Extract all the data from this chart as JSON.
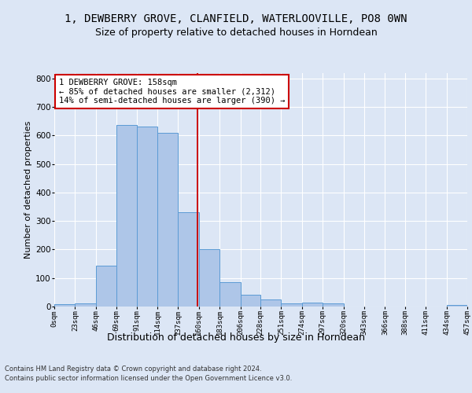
{
  "title_line1": "1, DEWBERRY GROVE, CLANFIELD, WATERLOOVILLE, PO8 0WN",
  "title_line2": "Size of property relative to detached houses in Horndean",
  "xlabel": "Distribution of detached houses by size in Horndean",
  "ylabel": "Number of detached properties",
  "footer1": "Contains HM Land Registry data © Crown copyright and database right 2024.",
  "footer2": "Contains public sector information licensed under the Open Government Licence v3.0.",
  "bar_edges": [
    0,
    23,
    46,
    69,
    91,
    114,
    137,
    160,
    183,
    206,
    228,
    251,
    274,
    297,
    320,
    343,
    366,
    388,
    411,
    434,
    457
  ],
  "bar_heights": [
    7,
    10,
    143,
    638,
    630,
    608,
    330,
    200,
    85,
    42,
    26,
    12,
    13,
    10,
    0,
    0,
    0,
    0,
    0,
    5
  ],
  "bar_color": "#aec6e8",
  "bar_edgecolor": "#5b9bd5",
  "vline_x": 158,
  "vline_color": "#cc0000",
  "annotation_line1": "1 DEWBERRY GROVE: 158sqm",
  "annotation_line2": "← 85% of detached houses are smaller (2,312)",
  "annotation_line3": "14% of semi-detached houses are larger (390) →",
  "annotation_box_edgecolor": "#cc0000",
  "annotation_box_facecolor": "#ffffff",
  "ylim": [
    0,
    820
  ],
  "yticks": [
    0,
    100,
    200,
    300,
    400,
    500,
    600,
    700,
    800
  ],
  "tick_labels": [
    "0sqm",
    "23sqm",
    "46sqm",
    "69sqm",
    "91sqm",
    "114sqm",
    "137sqm",
    "160sqm",
    "183sqm",
    "206sqm",
    "228sqm",
    "251sqm",
    "274sqm",
    "297sqm",
    "320sqm",
    "343sqm",
    "366sqm",
    "388sqm",
    "411sqm",
    "434sqm",
    "457sqm"
  ],
  "background_color": "#dce6f5",
  "plot_background_color": "#dce6f5",
  "title_fontsize": 10,
  "subtitle_fontsize": 9,
  "ylabel_fontsize": 8,
  "xlabel_fontsize": 9,
  "grid_color": "#ffffff",
  "annotation_fontsize": 7.5,
  "footer_fontsize": 6,
  "xtick_fontsize": 6.5,
  "ytick_fontsize": 7.5
}
